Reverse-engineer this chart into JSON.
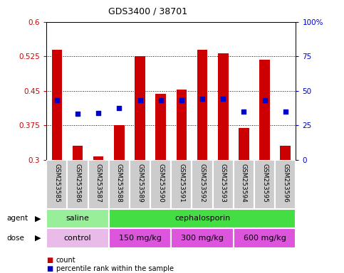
{
  "title": "GDS3400 / 38701",
  "samples": [
    "GSM253585",
    "GSM253586",
    "GSM253587",
    "GSM253588",
    "GSM253589",
    "GSM253590",
    "GSM253591",
    "GSM253592",
    "GSM253593",
    "GSM253594",
    "GSM253595",
    "GSM253596"
  ],
  "bar_heights": [
    0.54,
    0.33,
    0.307,
    0.375,
    0.526,
    0.443,
    0.452,
    0.54,
    0.532,
    0.369,
    0.518,
    0.33
  ],
  "dot_values": [
    0.43,
    0.4,
    0.402,
    0.413,
    0.43,
    0.43,
    0.43,
    0.432,
    0.432,
    0.405,
    0.43,
    0.405
  ],
  "ylim_left": [
    0.3,
    0.6
  ],
  "ylim_right": [
    0,
    100
  ],
  "yticks_left": [
    0.3,
    0.375,
    0.45,
    0.525,
    0.6
  ],
  "yticks_right": [
    0,
    25,
    50,
    75,
    100
  ],
  "ytick_labels_left": [
    "0.3",
    "0.375",
    "0.45",
    "0.525",
    "0.6"
  ],
  "ytick_labels_right": [
    "0",
    "25",
    "50",
    "75",
    "100%"
  ],
  "bar_color": "#cc0000",
  "dot_color": "#0000cc",
  "bar_bottom": 0.3,
  "agent_groups": [
    {
      "label": "saline",
      "start": 0,
      "end": 3,
      "color": "#99ee99"
    },
    {
      "label": "cephalosporin",
      "start": 3,
      "end": 12,
      "color": "#44dd44"
    }
  ],
  "dose_groups": [
    {
      "label": "control",
      "start": 0,
      "end": 3,
      "color": "#e8bbe8"
    },
    {
      "label": "150 mg/kg",
      "start": 3,
      "end": 6,
      "color": "#dd55dd"
    },
    {
      "label": "300 mg/kg",
      "start": 6,
      "end": 9,
      "color": "#dd55dd"
    },
    {
      "label": "600 mg/kg",
      "start": 9,
      "end": 12,
      "color": "#dd55dd"
    }
  ],
  "legend_items": [
    {
      "label": "count",
      "color": "#cc0000"
    },
    {
      "label": "percentile rank within the sample",
      "color": "#0000cc"
    }
  ],
  "background_color": "#ffffff",
  "xticklabel_bg": "#cccccc"
}
